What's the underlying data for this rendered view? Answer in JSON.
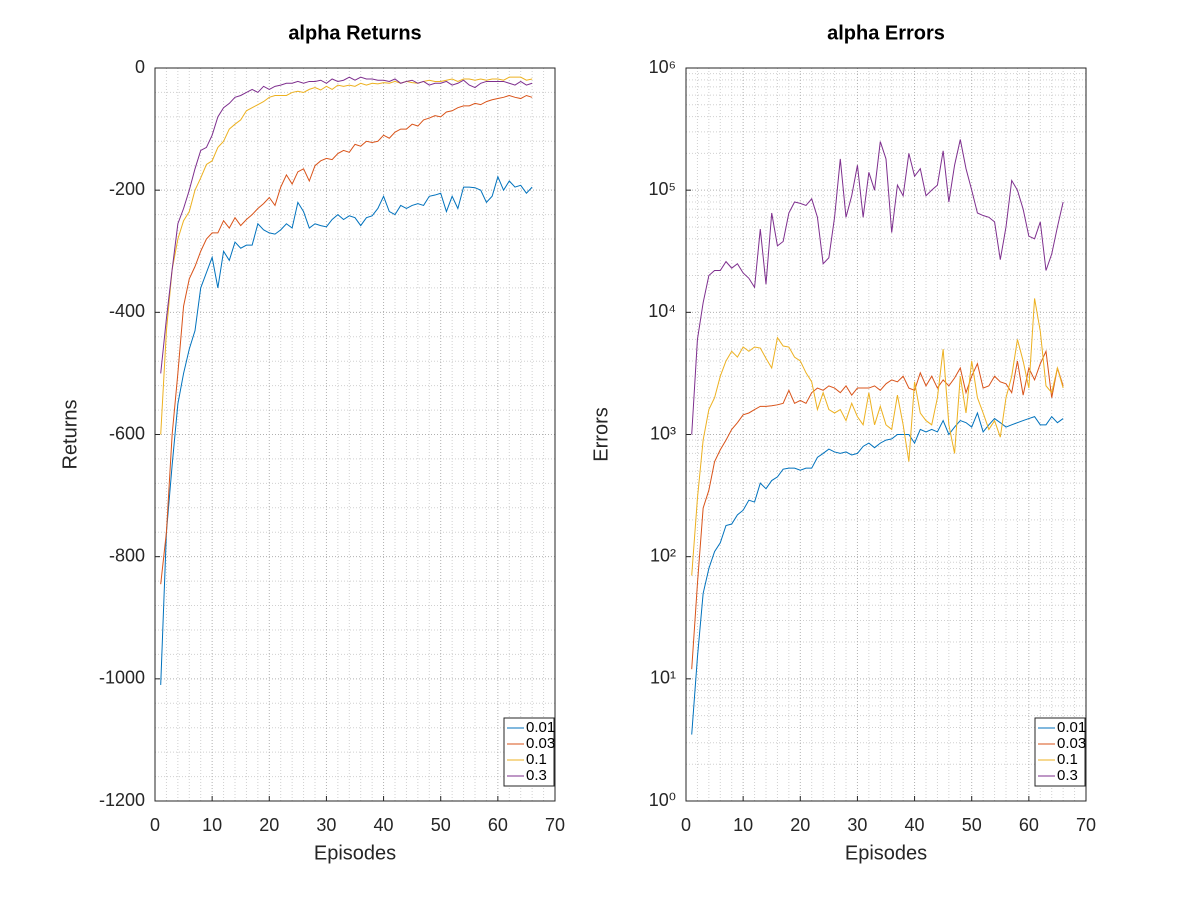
{
  "chart_data": [
    {
      "type": "line",
      "title": "alpha Returns",
      "xlabel": "Episodes",
      "ylabel": "Returns",
      "x": [
        1,
        2,
        3,
        4,
        5,
        6,
        7,
        8,
        9,
        10,
        11,
        12,
        13,
        14,
        15,
        16,
        17,
        18,
        19,
        20,
        21,
        22,
        23,
        24,
        25,
        26,
        27,
        28,
        29,
        30,
        31,
        32,
        33,
        34,
        35,
        36,
        37,
        38,
        39,
        40,
        41,
        42,
        43,
        44,
        45,
        46,
        47,
        48,
        49,
        50,
        51,
        52,
        53,
        54,
        55,
        56,
        57,
        58,
        59,
        60,
        61,
        62,
        63,
        64,
        65,
        66
      ],
      "xlim": [
        0,
        70
      ],
      "xticks": [
        0,
        10,
        20,
        30,
        40,
        50,
        60,
        70
      ],
      "ylim": [
        -1200,
        0
      ],
      "yticks": [
        -1200,
        -1000,
        -800,
        -600,
        -400,
        -200,
        0
      ],
      "log_y": false,
      "grid": true,
      "minor_grid": true,
      "legend": "southeast",
      "series": [
        {
          "name": "0.01",
          "color": "#0072bd",
          "values": [
            -1010,
            -760,
            -650,
            -550,
            -500,
            -460,
            -430,
            -360,
            -335,
            -310,
            -360,
            -300,
            -315,
            -285,
            -295,
            -290,
            -290,
            -255,
            -265,
            -270,
            -272,
            -265,
            -255,
            -262,
            -220,
            -235,
            -262,
            -255,
            -258,
            -260,
            -248,
            -240,
            -248,
            -242,
            -245,
            -258,
            -245,
            -242,
            -230,
            -210,
            -235,
            -240,
            -225,
            -230,
            -225,
            -222,
            -225,
            -210,
            -208,
            -205,
            -235,
            -210,
            -230,
            -195,
            -195,
            -196,
            -200,
            -220,
            -210,
            -178,
            -200,
            -185,
            -195,
            -192,
            -205,
            -195
          ]
        },
        {
          "name": "0.03",
          "color": "#d95319",
          "values": [
            -845,
            -760,
            -600,
            -500,
            -390,
            -345,
            -325,
            -300,
            -280,
            -270,
            -270,
            -250,
            -262,
            -245,
            -258,
            -248,
            -240,
            -230,
            -222,
            -212,
            -225,
            -195,
            -175,
            -190,
            -170,
            -165,
            -185,
            -160,
            -152,
            -148,
            -150,
            -140,
            -135,
            -138,
            -125,
            -128,
            -120,
            -122,
            -120,
            -110,
            -115,
            -105,
            -100,
            -100,
            -92,
            -95,
            -85,
            -82,
            -78,
            -80,
            -72,
            -70,
            -65,
            -62,
            -62,
            -58,
            -60,
            -55,
            -52,
            -50,
            -48,
            -45,
            -48,
            -50,
            -45,
            -48
          ]
        },
        {
          "name": "0.1",
          "color": "#edb120",
          "values": [
            -600,
            -430,
            -330,
            -280,
            -250,
            -235,
            -200,
            -180,
            -158,
            -152,
            -130,
            -120,
            -100,
            -92,
            -85,
            -70,
            -65,
            -60,
            -55,
            -48,
            -45,
            -45,
            -45,
            -40,
            -38,
            -40,
            -35,
            -32,
            -36,
            -30,
            -35,
            -28,
            -30,
            -28,
            -30,
            -25,
            -28,
            -25,
            -26,
            -24,
            -25,
            -22,
            -25,
            -22,
            -24,
            -25,
            -22,
            -20,
            -22,
            -22,
            -20,
            -18,
            -22,
            -18,
            -18,
            -20,
            -18,
            -20,
            -18,
            -18,
            -20,
            -15,
            -15,
            -15,
            -20,
            -18
          ]
        },
        {
          "name": "0.3",
          "color": "#7e2f8e",
          "values": [
            -500,
            -410,
            -330,
            -255,
            -230,
            -200,
            -165,
            -135,
            -130,
            -110,
            -80,
            -65,
            -58,
            -48,
            -45,
            -40,
            -35,
            -40,
            -30,
            -35,
            -30,
            -28,
            -25,
            -25,
            -22,
            -25,
            -22,
            -22,
            -20,
            -25,
            -18,
            -22,
            -20,
            -15,
            -20,
            -15,
            -18,
            -18,
            -20,
            -20,
            -22,
            -18,
            -25,
            -22,
            -20,
            -25,
            -22,
            -28,
            -25,
            -25,
            -22,
            -28,
            -25,
            -20,
            -28,
            -32,
            -25,
            -22,
            -22,
            -22,
            -22,
            -25,
            -28,
            -22,
            -28,
            -25
          ]
        }
      ]
    },
    {
      "type": "line",
      "title": "alpha Errors",
      "xlabel": "Episodes",
      "ylabel": "Errors",
      "x": [
        1,
        2,
        3,
        4,
        5,
        6,
        7,
        8,
        9,
        10,
        11,
        12,
        13,
        14,
        15,
        16,
        17,
        18,
        19,
        20,
        21,
        22,
        23,
        24,
        25,
        26,
        27,
        28,
        29,
        30,
        31,
        32,
        33,
        34,
        35,
        36,
        37,
        38,
        39,
        40,
        41,
        42,
        43,
        44,
        45,
        46,
        47,
        48,
        49,
        50,
        51,
        52,
        53,
        54,
        55,
        56,
        57,
        58,
        59,
        60,
        61,
        62,
        63,
        64,
        65,
        66
      ],
      "xlim": [
        0,
        70
      ],
      "xticks": [
        0,
        10,
        20,
        30,
        40,
        50,
        60,
        70
      ],
      "ylim": [
        1,
        1000000
      ],
      "yticks": [
        {
          "value": 1,
          "label": "10⁰"
        },
        {
          "value": 10,
          "label": "10¹"
        },
        {
          "value": 100,
          "label": "10²"
        },
        {
          "value": 1000,
          "label": "10³"
        },
        {
          "value": 10000,
          "label": "10⁴"
        },
        {
          "value": 100000,
          "label": "10⁵"
        },
        {
          "value": 1000000,
          "label": "10⁶"
        }
      ],
      "log_y": true,
      "grid": true,
      "minor_grid": true,
      "legend": "southeast",
      "series": [
        {
          "name": "0.01",
          "color": "#0072bd",
          "values": [
            3.5,
            15,
            50,
            80,
            110,
            130,
            180,
            185,
            220,
            240,
            290,
            280,
            400,
            360,
            420,
            450,
            520,
            530,
            530,
            510,
            530,
            530,
            650,
            700,
            760,
            720,
            700,
            720,
            680,
            700,
            800,
            850,
            780,
            850,
            900,
            920,
            1000,
            1000,
            1000,
            850,
            1100,
            1050,
            1100,
            1050,
            1300,
            1000,
            1150,
            1300,
            1250,
            1150,
            1500,
            1050,
            1200,
            1350,
            1250,
            1150,
            1200,
            1250,
            1300,
            1350,
            1400,
            1200,
            1200,
            1400,
            1250,
            1350
          ]
        },
        {
          "name": "0.03",
          "color": "#d95319",
          "values": [
            12,
            60,
            250,
            350,
            600,
            750,
            900,
            1100,
            1250,
            1450,
            1500,
            1600,
            1700,
            1700,
            1720,
            1750,
            1800,
            2300,
            1800,
            1900,
            1800,
            2200,
            2400,
            2300,
            2500,
            2400,
            2200,
            2500,
            2100,
            2400,
            2400,
            2400,
            2500,
            2300,
            2600,
            2800,
            2700,
            3000,
            2400,
            2300,
            3200,
            2500,
            3000,
            2400,
            2800,
            2500,
            2900,
            3500,
            2200,
            3000,
            3800,
            2400,
            2500,
            3000,
            2700,
            2600,
            2200,
            4000,
            2100,
            3500,
            2800,
            3800,
            4800,
            2000,
            3500,
            2500
          ]
        },
        {
          "name": "0.1",
          "color": "#edb120",
          "values": [
            70,
            300,
            900,
            1600,
            2000,
            3000,
            4000,
            4800,
            4300,
            5200,
            4800,
            5200,
            5100,
            4200,
            3500,
            6200,
            5300,
            5200,
            4300,
            4000,
            3200,
            2700,
            1600,
            2200,
            1600,
            1500,
            1600,
            1300,
            1800,
            1400,
            1200,
            2200,
            1200,
            1700,
            1200,
            1100,
            2100,
            1200,
            600,
            2700,
            1500,
            1300,
            1200,
            2000,
            5000,
            1200,
            700,
            3000,
            1500,
            4000,
            2000,
            1500,
            1100,
            1300,
            950,
            2000,
            3000,
            6000,
            4000,
            2400,
            13000,
            7000,
            2500,
            2200,
            3500,
            2400
          ]
        },
        {
          "name": "0.3",
          "color": "#7e2f8e",
          "values": [
            1000,
            6000,
            12000,
            20000,
            22000,
            22000,
            26000,
            23000,
            25000,
            21000,
            19000,
            16000,
            48000,
            17000,
            65000,
            35000,
            38000,
            65000,
            80000,
            78000,
            75000,
            85000,
            60000,
            25000,
            28000,
            60000,
            180000,
            60000,
            90000,
            160000,
            60000,
            140000,
            100000,
            250000,
            180000,
            45000,
            110000,
            90000,
            200000,
            130000,
            150000,
            90000,
            100000,
            110000,
            210000,
            80000,
            160000,
            260000,
            150000,
            100000,
            65000,
            62000,
            60000,
            55000,
            27000,
            50000,
            120000,
            100000,
            70000,
            42000,
            40000,
            55000,
            22000,
            30000,
            50000,
            80000
          ]
        }
      ]
    }
  ]
}
